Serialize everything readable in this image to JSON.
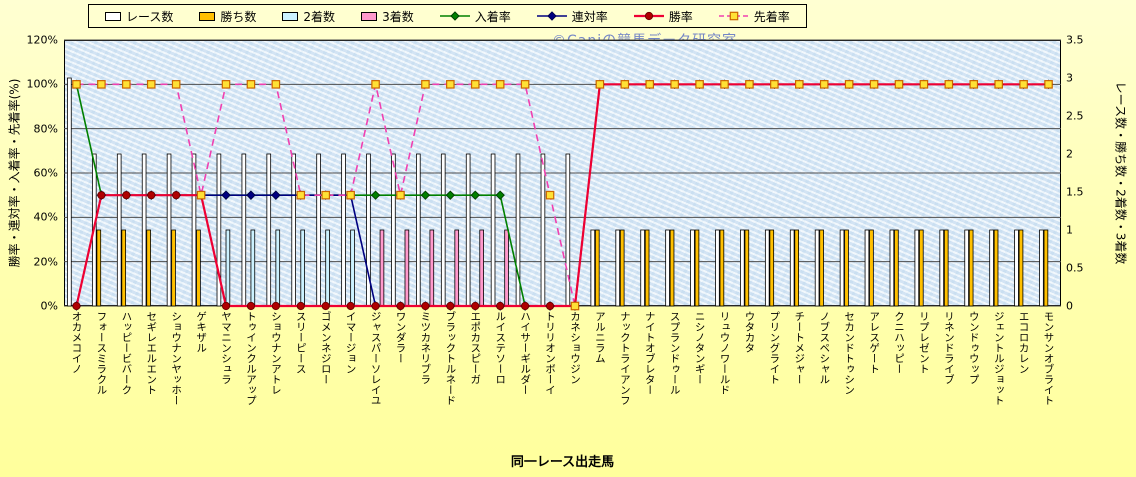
{
  "watermark": "©Caniの競馬データ研究室",
  "chart_data": {
    "type": "combo-bar-line",
    "x_title": "同一レース出走馬",
    "grid": true,
    "legend_position": "top",
    "left_axis": {
      "title": "勝率・連対率・入着率・先着率(%)",
      "min": 0,
      "max": 120,
      "unit": "%",
      "ticks": [
        {
          "label": "120%",
          "value": 120
        },
        {
          "label": "100%",
          "value": 100
        },
        {
          "label": "80%",
          "value": 80
        },
        {
          "label": "60%",
          "value": 60
        },
        {
          "label": "40%",
          "value": 40
        },
        {
          "label": "20%",
          "value": 20
        },
        {
          "label": "0%",
          "value": 0
        }
      ]
    },
    "right_axis": {
      "title": "レース数・勝ち数・2着数・3着数",
      "min": 0,
      "max": 3.5,
      "ticks": [
        {
          "label": "3.5",
          "value": 3.5
        },
        {
          "label": "3",
          "value": 3
        },
        {
          "label": "2.5",
          "value": 2.5
        },
        {
          "label": "2",
          "value": 2
        },
        {
          "label": "1.5",
          "value": 1.5
        },
        {
          "label": "1",
          "value": 1
        },
        {
          "label": "0.5",
          "value": 0.5
        },
        {
          "label": "0",
          "value": 0
        }
      ]
    },
    "categories": [
      "オカメコイノ",
      "フォースミラクル",
      "ハッピービバーク",
      "セギレエルエント",
      "ショウナンヤッホー",
      "ゲキザル",
      "ヤマニンシュラ",
      "トゥインクルアップ",
      "ショウナンアトレ",
      "スリーピース",
      "ゴメンネジロー",
      "イマージョン",
      "ジャスパーソレイユ",
      "ワンダラー",
      "ミツカネリブラ",
      "ブラックトルネード",
      "エポカスピーガ",
      "ルイステソーロ",
      "ハイサーギルダー",
      "トリリオンボーイ",
      "カネショウジン",
      "アルニラム",
      "ナックトライアンフ",
      "ナイトオブレター",
      "スプランドゥール",
      "ニシノタンギー",
      "リュウノワールド",
      "ウタカタ",
      "プリングライト",
      "チートメジャー",
      "ノブスペシャル",
      "セカンドトゥシン",
      "アレスゲート",
      "クニハッピー",
      "リプレゼント",
      "リネンドライブ",
      "ウンドゥウップ",
      "ジェントルジョット",
      "エコロカレン",
      "モンサンオブライト"
    ],
    "bar_series": [
      {
        "key": "race_count",
        "name": "レース数",
        "axis": "right",
        "color": "#FFFFFF",
        "values": [
          3,
          2,
          2,
          2,
          2,
          2,
          2,
          2,
          2,
          2,
          2,
          2,
          2,
          2,
          2,
          2,
          2,
          2,
          2,
          2,
          2,
          1,
          1,
          1,
          1,
          1,
          1,
          1,
          1,
          1,
          1,
          1,
          1,
          1,
          1,
          1,
          1,
          1,
          1,
          1
        ]
      },
      {
        "key": "win_count",
        "name": "勝ち数",
        "axis": "right",
        "color": "#FFC000",
        "values": [
          0,
          1,
          1,
          1,
          1,
          1,
          0,
          0,
          0,
          0,
          0,
          0,
          0,
          0,
          0,
          0,
          0,
          0,
          0,
          0,
          0,
          1,
          1,
          1,
          1,
          1,
          1,
          1,
          1,
          1,
          1,
          1,
          1,
          1,
          1,
          1,
          1,
          1,
          1,
          1
        ]
      },
      {
        "key": "second_count",
        "name": "2着数",
        "axis": "right",
        "color": "#CCF2FF",
        "values": [
          0,
          0,
          0,
          0,
          0,
          0,
          1,
          1,
          1,
          1,
          1,
          1,
          0,
          0,
          0,
          0,
          0,
          0,
          0,
          0,
          0,
          0,
          0,
          0,
          0,
          0,
          0,
          0,
          0,
          0,
          0,
          0,
          0,
          0,
          0,
          0,
          0,
          0,
          0,
          0
        ]
      },
      {
        "key": "third_count",
        "name": "3着数",
        "axis": "right",
        "color": "#FF99CC",
        "values": [
          0,
          0,
          0,
          0,
          0,
          0,
          0,
          0,
          0,
          0,
          0,
          0,
          1,
          1,
          1,
          1,
          1,
          1,
          0,
          0,
          0,
          0,
          0,
          0,
          0,
          0,
          0,
          0,
          0,
          0,
          0,
          0,
          0,
          0,
          0,
          0,
          0,
          0,
          0,
          0
        ]
      }
    ],
    "line_series": [
      {
        "key": "place_rate",
        "name": "入着率",
        "axis": "left",
        "color": "#008000",
        "marker": "diamond",
        "marker_fill": "#008000",
        "marker_stroke": "#004000",
        "dash": false,
        "width": 1.6,
        "values": [
          100,
          50,
          50,
          50,
          50,
          50,
          50,
          50,
          50,
          50,
          50,
          50,
          50,
          50,
          50,
          50,
          50,
          50,
          0,
          0,
          0,
          100,
          100,
          100,
          100,
          100,
          100,
          100,
          100,
          100,
          100,
          100,
          100,
          100,
          100,
          100,
          100,
          100,
          100,
          100
        ]
      },
      {
        "key": "quinella_rate",
        "name": "連対率",
        "axis": "left",
        "color": "#000080",
        "marker": "diamond",
        "marker_fill": "#000080",
        "marker_stroke": "#000050",
        "dash": false,
        "width": 1.6,
        "values": [
          0,
          50,
          50,
          50,
          50,
          50,
          50,
          50,
          50,
          50,
          50,
          50,
          0,
          0,
          0,
          0,
          0,
          0,
          0,
          0,
          0,
          100,
          100,
          100,
          100,
          100,
          100,
          100,
          100,
          100,
          100,
          100,
          100,
          100,
          100,
          100,
          100,
          100,
          100,
          100
        ]
      },
      {
        "key": "win_rate",
        "name": "勝率",
        "axis": "left",
        "color": "#EE0033",
        "marker": "circle",
        "marker_fill": "#B00000",
        "marker_stroke": "#700000",
        "dash": false,
        "width": 2.2,
        "values": [
          0,
          50,
          50,
          50,
          50,
          50,
          0,
          0,
          0,
          0,
          0,
          0,
          0,
          0,
          0,
          0,
          0,
          0,
          0,
          0,
          0,
          100,
          100,
          100,
          100,
          100,
          100,
          100,
          100,
          100,
          100,
          100,
          100,
          100,
          100,
          100,
          100,
          100,
          100,
          100
        ]
      },
      {
        "key": "first_finish_rate",
        "name": "先着率",
        "axis": "left",
        "color": "#F040B0",
        "marker": "square",
        "marker_fill": "#FFE135",
        "marker_stroke": "#CC6600",
        "dash": true,
        "width": 1.6,
        "values": [
          100,
          100,
          100,
          100,
          100,
          50,
          100,
          100,
          100,
          50,
          50,
          50,
          100,
          50,
          100,
          100,
          100,
          100,
          100,
          50,
          0,
          100,
          100,
          100,
          100,
          100,
          100,
          100,
          100,
          100,
          100,
          100,
          100,
          100,
          100,
          100,
          100,
          100,
          100,
          100
        ]
      }
    ]
  }
}
